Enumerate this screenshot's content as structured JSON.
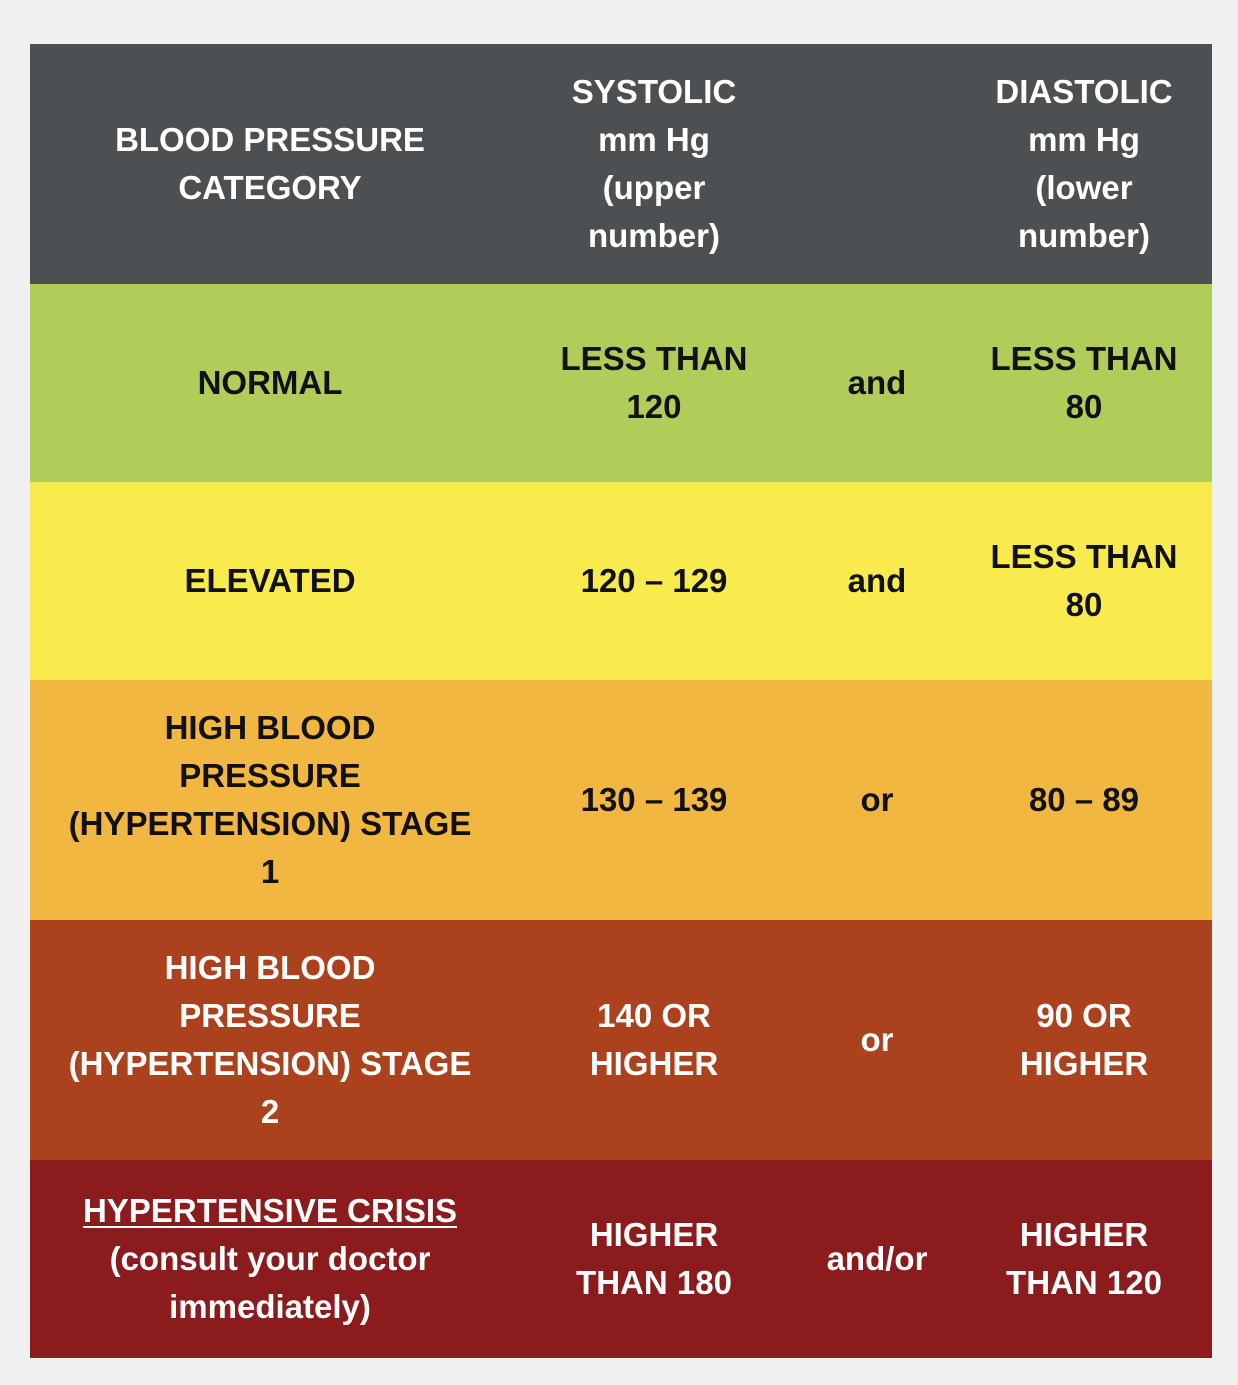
{
  "colors": {
    "page_background": "#f0f0f0",
    "header": "#4d5052",
    "normal": "#afcd58",
    "elevated": "#f9eb4e",
    "stage1": "#f2b740",
    "stage2": "#ac421d",
    "crisis": "#8b1b1c"
  },
  "header": {
    "category": "BLOOD PRESSURE\nCATEGORY",
    "systolic": "SYSTOLIC\nmm Hg\n(upper\nnumber)",
    "conjunction": "",
    "diastolic": "DIASTOLIC\nmm Hg\n(lower\nnumber)"
  },
  "rows": [
    {
      "category": "NORMAL",
      "systolic": "LESS THAN\n120",
      "conjunction": "and",
      "diastolic": "LESS THAN\n80"
    },
    {
      "category": "ELEVATED",
      "systolic": "120 – 129",
      "conjunction": "and",
      "diastolic": "LESS THAN\n80"
    },
    {
      "category": "HIGH BLOOD\nPRESSURE\n(HYPERTENSION) STAGE\n1",
      "systolic": "130 – 139",
      "conjunction": "or",
      "diastolic": "80 – 89"
    },
    {
      "category": "HIGH BLOOD\nPRESSURE\n(HYPERTENSION) STAGE\n2",
      "systolic": "140 OR\nHIGHER",
      "conjunction": "or",
      "diastolic": "90 OR\nHIGHER"
    },
    {
      "category_title": "HYPERTENSIVE CRISIS",
      "category_note": "(consult your doctor\nimmediately)",
      "systolic": "HIGHER\nTHAN 180",
      "conjunction": "and/or",
      "diastolic": "HIGHER\nTHAN 120"
    }
  ]
}
